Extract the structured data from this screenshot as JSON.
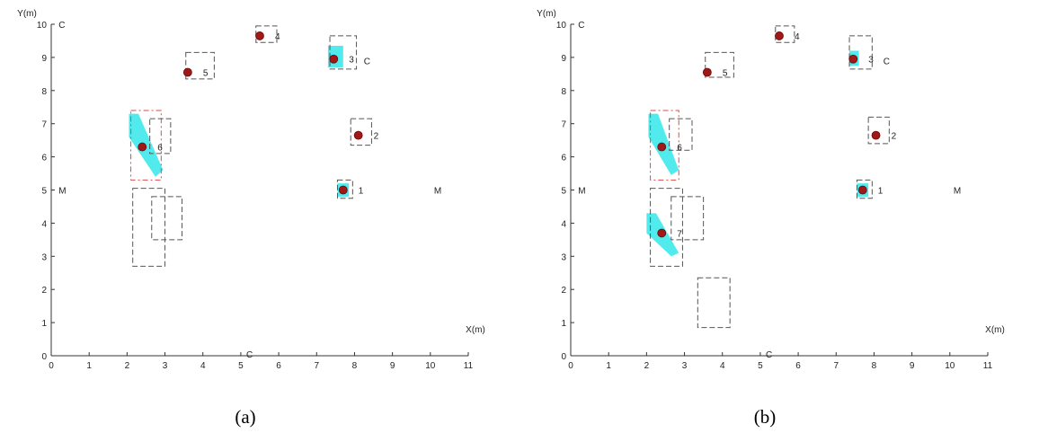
{
  "charts": [
    {
      "caption": "(a)",
      "chart_data": {
        "type": "scatter",
        "xlabel": "X(m)",
        "ylabel": "Y(m)",
        "xlim": [
          0,
          11
        ],
        "ylim": [
          0,
          10
        ],
        "xticks": [
          "0",
          "1",
          "2",
          "3",
          "4",
          "5",
          "6",
          "7",
          "8",
          "9",
          "10",
          "11"
        ],
        "yticks": [
          "0",
          "1",
          "2",
          "3",
          "4",
          "5",
          "6",
          "7",
          "8",
          "9",
          "10"
        ],
        "grid": false,
        "anchor_labels": [
          {
            "text": "M",
            "x": 0.1,
            "y": 5.0
          },
          {
            "text": "M",
            "x": 10.0,
            "y": 5.0
          },
          {
            "text": "C",
            "x": 0.1,
            "y": 10.0
          },
          {
            "text": "C",
            "x": 5.05,
            "y": 0.05
          },
          {
            "text": "C",
            "x": 8.15,
            "y": 8.9
          }
        ],
        "targets": [
          {
            "label": "1",
            "x": 7.7,
            "y": 5.0
          },
          {
            "label": "2",
            "x": 8.1,
            "y": 6.65
          },
          {
            "label": "3",
            "x": 7.45,
            "y": 8.95
          },
          {
            "label": "4",
            "x": 5.5,
            "y": 9.65
          },
          {
            "label": "5",
            "x": 3.6,
            "y": 8.55
          },
          {
            "label": "6",
            "x": 2.4,
            "y": 6.3
          }
        ],
        "uncertainty_regions": [
          {
            "x0": 7.55,
            "x1": 7.85,
            "y0": 4.8,
            "y1": 5.2
          },
          {
            "x0": 7.3,
            "x1": 7.7,
            "y0": 8.7,
            "y1": 9.35
          },
          {
            "polygon": [
              [
                2.05,
                7.3
              ],
              [
                2.3,
                7.3
              ],
              [
                2.95,
                5.6
              ],
              [
                2.75,
                5.4
              ],
              [
                2.05,
                6.6
              ]
            ]
          }
        ],
        "boxes": [
          {
            "x0": 2.1,
            "x1": 2.9,
            "y0": 5.3,
            "y1": 7.4,
            "style": "red-dash"
          },
          {
            "x0": 2.6,
            "x1": 3.15,
            "y0": 6.1,
            "y1": 7.15,
            "style": "dash"
          },
          {
            "x0": 7.9,
            "x1": 8.45,
            "y0": 6.35,
            "y1": 7.15,
            "style": "dash"
          },
          {
            "x0": 7.35,
            "x1": 8.05,
            "y0": 8.65,
            "y1": 9.65,
            "style": "dash"
          },
          {
            "x0": 3.55,
            "x1": 4.3,
            "y0": 8.35,
            "y1": 9.15,
            "style": "dash"
          },
          {
            "x0": 5.4,
            "x1": 5.95,
            "y0": 9.45,
            "y1": 9.95,
            "style": "dash"
          },
          {
            "x0": 7.55,
            "x1": 7.95,
            "y0": 4.75,
            "y1": 5.3,
            "style": "dash"
          },
          {
            "x0": 2.15,
            "x1": 3.0,
            "y0": 2.7,
            "y1": 5.05,
            "style": "dash"
          },
          {
            "x0": 2.65,
            "x1": 3.45,
            "y0": 3.5,
            "y1": 4.8,
            "style": "dash"
          }
        ]
      }
    },
    {
      "caption": "(b)",
      "chart_data": {
        "type": "scatter",
        "xlabel": "X(m)",
        "ylabel": "Y(m)",
        "xlim": [
          0,
          11
        ],
        "ylim": [
          0,
          10
        ],
        "xticks": [
          "0",
          "1",
          "2",
          "3",
          "4",
          "5",
          "6",
          "7",
          "8",
          "9",
          "10",
          "11"
        ],
        "yticks": [
          "0",
          "1",
          "2",
          "3",
          "4",
          "5",
          "6",
          "7",
          "8",
          "9",
          "10"
        ],
        "grid": false,
        "anchor_labels": [
          {
            "text": "M",
            "x": 0.1,
            "y": 5.0
          },
          {
            "text": "M",
            "x": 10.0,
            "y": 5.0
          },
          {
            "text": "C",
            "x": 0.1,
            "y": 10.0
          },
          {
            "text": "C",
            "x": 5.05,
            "y": 0.05
          },
          {
            "text": "C",
            "x": 8.15,
            "y": 8.9
          }
        ],
        "targets": [
          {
            "label": "1",
            "x": 7.7,
            "y": 5.0
          },
          {
            "label": "2",
            "x": 8.05,
            "y": 6.65
          },
          {
            "label": "3",
            "x": 7.45,
            "y": 8.95
          },
          {
            "label": "4",
            "x": 5.5,
            "y": 9.65
          },
          {
            "label": "5",
            "x": 3.6,
            "y": 8.55
          },
          {
            "label": "6",
            "x": 2.4,
            "y": 6.3
          },
          {
            "label": "7",
            "x": 2.4,
            "y": 3.7
          }
        ],
        "uncertainty_regions": [
          {
            "x0": 7.55,
            "x1": 7.85,
            "y0": 4.8,
            "y1": 5.2
          },
          {
            "x0": 7.35,
            "x1": 7.6,
            "y0": 8.75,
            "y1": 9.2
          },
          {
            "polygon": [
              [
                2.05,
                7.3
              ],
              [
                2.3,
                7.3
              ],
              [
                2.85,
                5.6
              ],
              [
                2.65,
                5.45
              ],
              [
                2.05,
                6.6
              ]
            ]
          },
          {
            "polygon": [
              [
                2.0,
                4.3
              ],
              [
                2.25,
                4.3
              ],
              [
                2.85,
                3.1
              ],
              [
                2.65,
                3.0
              ],
              [
                2.0,
                3.7
              ]
            ]
          }
        ],
        "boxes": [
          {
            "x0": 2.1,
            "x1": 2.85,
            "y0": 5.3,
            "y1": 7.4,
            "style": "red-dash"
          },
          {
            "x0": 2.6,
            "x1": 3.2,
            "y0": 6.2,
            "y1": 7.15,
            "style": "dash"
          },
          {
            "x0": 7.85,
            "x1": 8.4,
            "y0": 6.4,
            "y1": 7.2,
            "style": "dash"
          },
          {
            "x0": 7.35,
            "x1": 7.95,
            "y0": 8.65,
            "y1": 9.65,
            "style": "dash"
          },
          {
            "x0": 3.55,
            "x1": 4.3,
            "y0": 8.4,
            "y1": 9.15,
            "style": "dash"
          },
          {
            "x0": 5.4,
            "x1": 5.9,
            "y0": 9.45,
            "y1": 9.95,
            "style": "dash"
          },
          {
            "x0": 7.55,
            "x1": 7.95,
            "y0": 4.75,
            "y1": 5.3,
            "style": "dash"
          },
          {
            "x0": 2.1,
            "x1": 2.95,
            "y0": 2.7,
            "y1": 5.05,
            "style": "dash"
          },
          {
            "x0": 2.65,
            "x1": 3.5,
            "y0": 3.5,
            "y1": 4.8,
            "style": "dash"
          },
          {
            "x0": 3.35,
            "x1": 4.2,
            "y0": 0.85,
            "y1": 2.35,
            "style": "dash"
          }
        ]
      }
    }
  ]
}
